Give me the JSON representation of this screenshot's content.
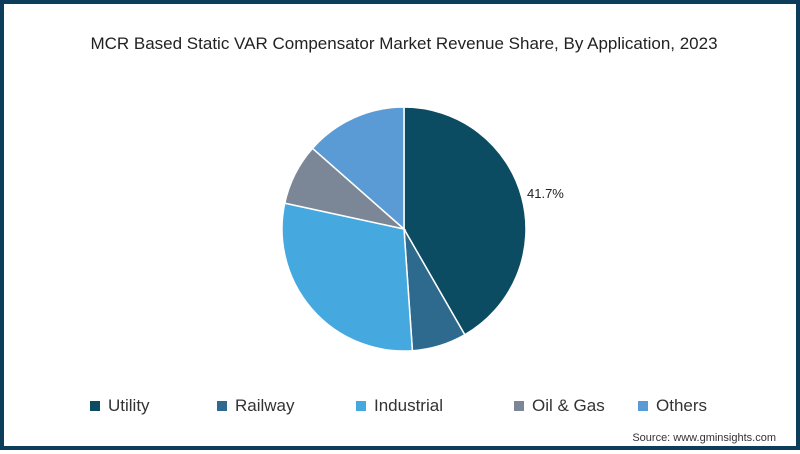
{
  "title": "MCR Based Static VAR Compensator Market Revenue Share, By Application, 2023",
  "source": "Source: www.gminsights.com",
  "legend": [
    {
      "label": "Utility",
      "color": "#0b4c63"
    },
    {
      "label": "Railway",
      "color": "#2e6a8e"
    },
    {
      "label": "Industrial",
      "color": "#45a9e0"
    },
    {
      "label": "Oil & Gas",
      "color": "#7b8796"
    },
    {
      "label": "Others",
      "color": "#5b9bd5"
    }
  ],
  "annotation": "41.7%",
  "chart_data": {
    "type": "pie",
    "title": "MCR Based Static VAR Compensator Market Revenue Share, By Application, 2023",
    "categories": [
      "Utility",
      "Railway",
      "Industrial",
      "Oil & Gas",
      "Others"
    ],
    "values": [
      41.7,
      7.2,
      29.5,
      8.1,
      13.5
    ],
    "colors": [
      "#0b4c63",
      "#2e6a8e",
      "#45a9e0",
      "#7b8796",
      "#5b9bd5"
    ],
    "labels_shown": {
      "Utility": "41.7%"
    },
    "legend_position": "bottom",
    "start_angle": "12 o'clock, clockwise"
  }
}
